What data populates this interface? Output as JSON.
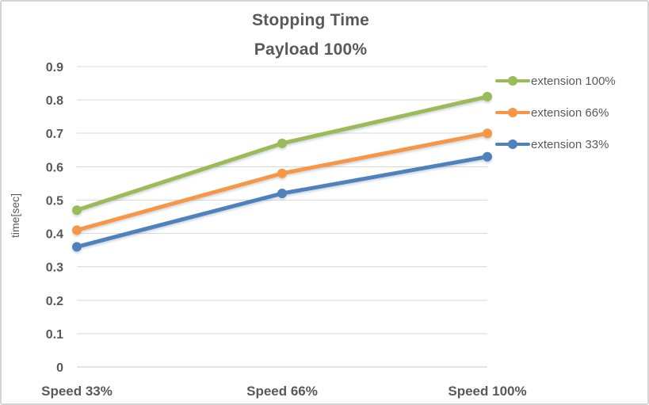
{
  "frame": {
    "background": "#FFFFFF",
    "border_color": "#D5D5D5",
    "text_color": "#595959"
  },
  "chart_data": {
    "type": "line",
    "title": "Stopping Time",
    "subtitle": "Payload 100%",
    "categories": [
      "Speed 33%",
      "Speed 66%",
      "Speed 100%"
    ],
    "series": [
      {
        "name": "extension 100%",
        "color": "#9BBB59",
        "values": [
          0.47,
          0.67,
          0.81
        ]
      },
      {
        "name": "extension 66%",
        "color": "#F79646",
        "values": [
          0.41,
          0.58,
          0.7
        ]
      },
      {
        "name": "extension 33%",
        "color": "#4F81BD",
        "values": [
          0.36,
          0.52,
          0.63
        ]
      }
    ],
    "xlabel": "",
    "ylabel": "time[sec]",
    "ylim": [
      0,
      0.9
    ],
    "y_ticks": [
      0,
      0.1,
      0.2,
      0.3,
      0.4,
      0.5,
      0.6,
      0.7,
      0.8,
      0.9
    ],
    "y_tick_labels": [
      "0",
      "0.1",
      "0.2",
      "0.3",
      "0.4",
      "0.5",
      "0.6",
      "0.7",
      "0.8",
      "0.9"
    ],
    "grid": true,
    "gridline_color": "#D9D9D9",
    "axis_line_color": "#C9C9C9",
    "legend_position": "right",
    "marker": "circle",
    "axis_crosses": "on-ticks"
  }
}
